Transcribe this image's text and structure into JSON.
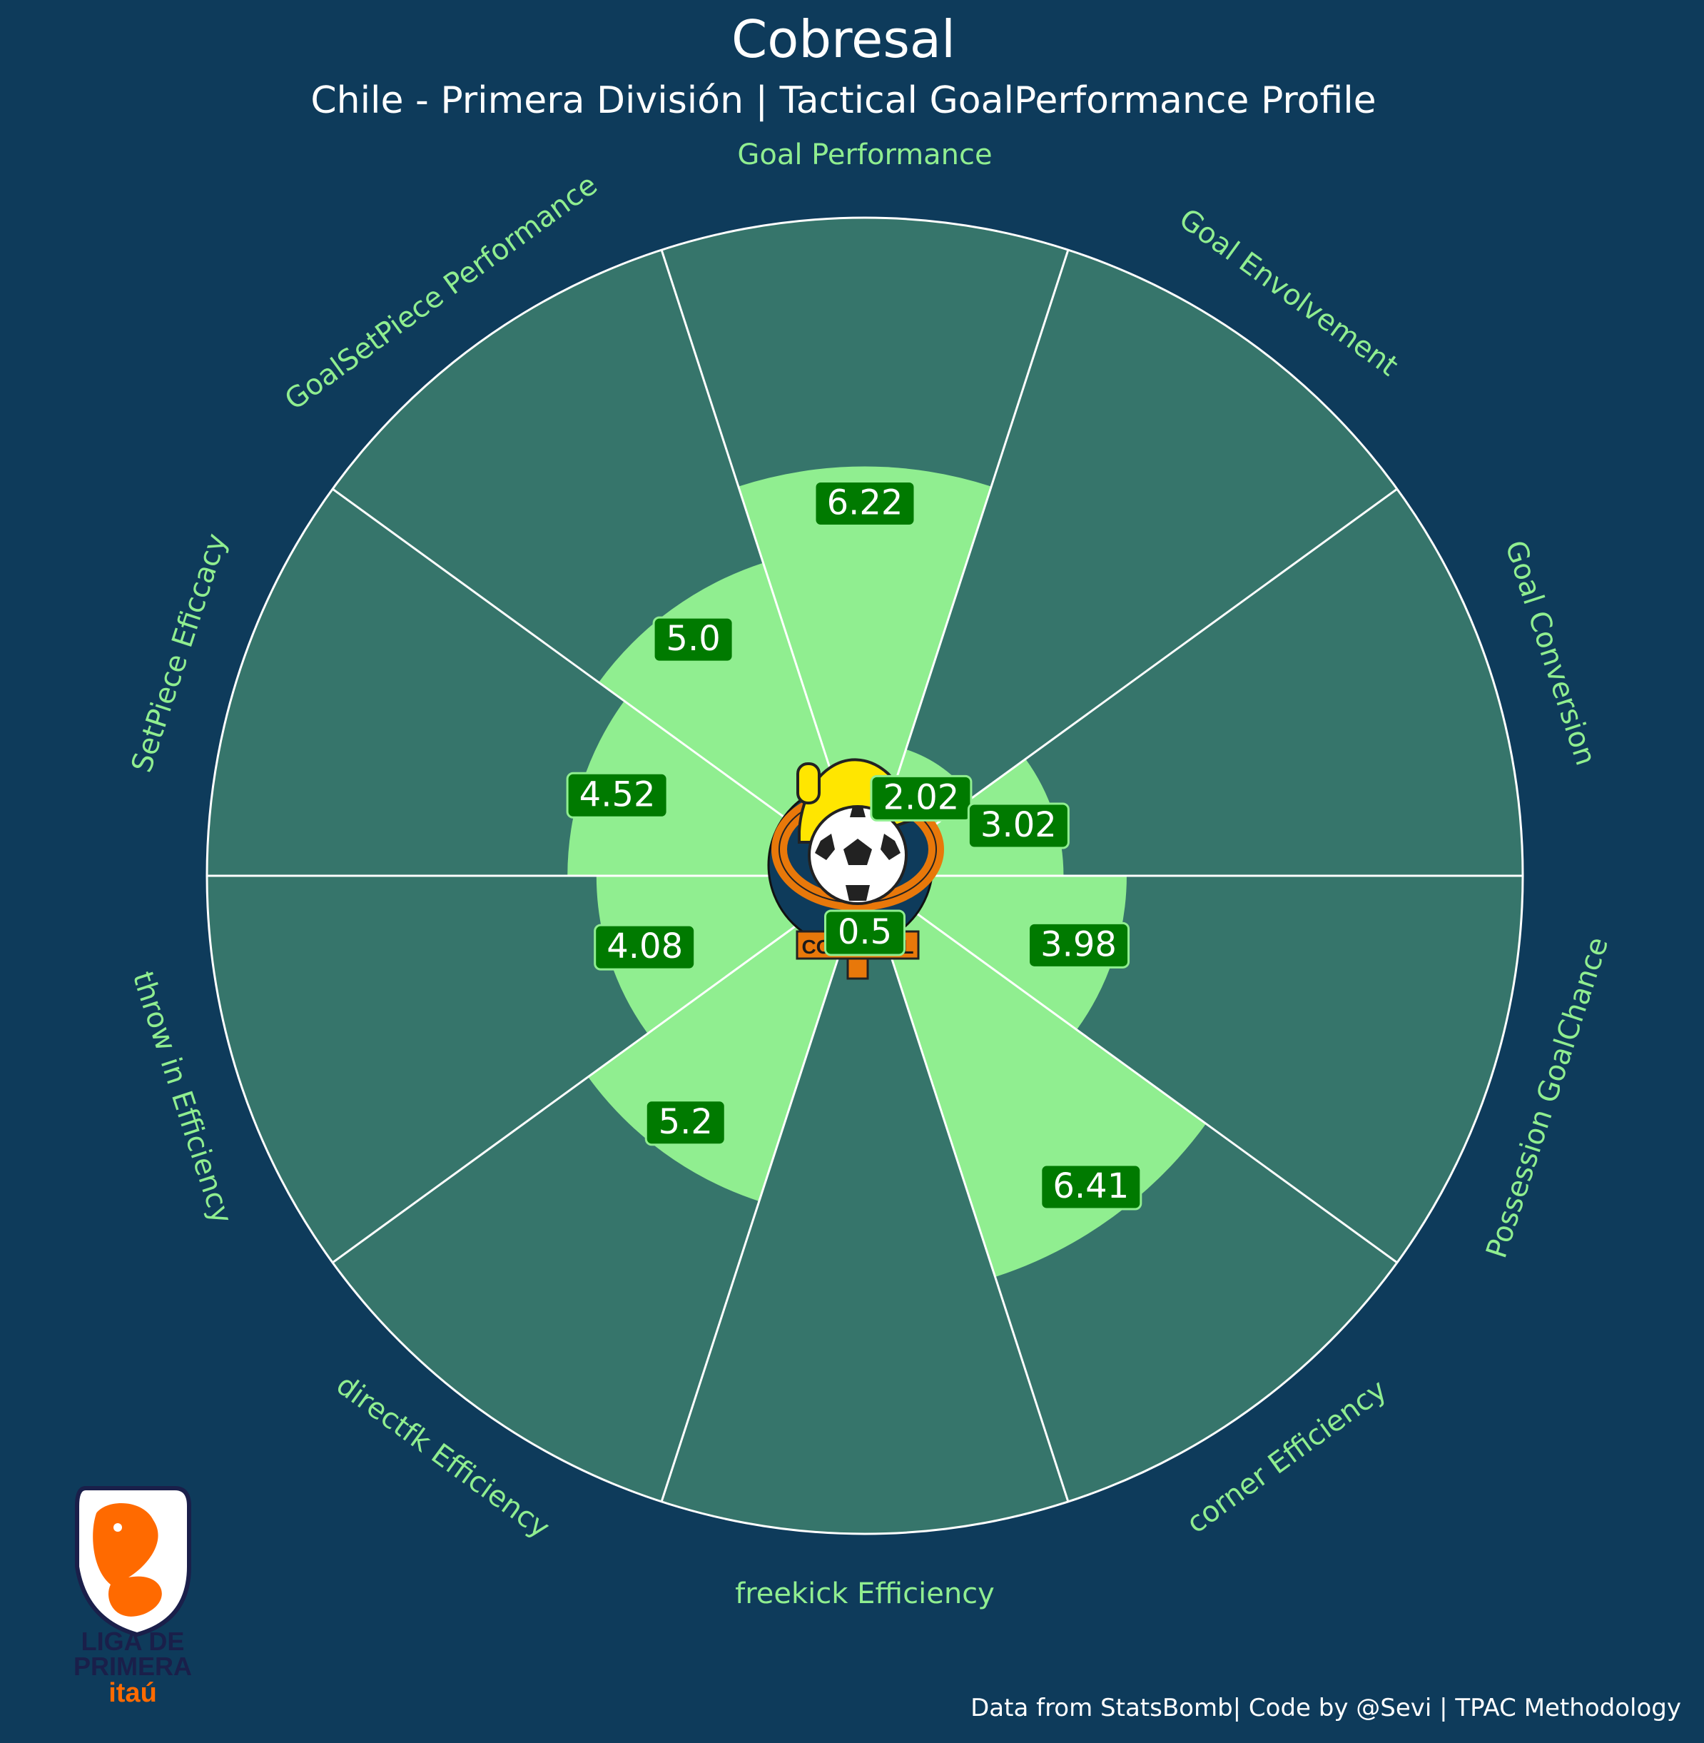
{
  "chart_data": {
    "type": "radial-bar",
    "title": "Cobresal",
    "subtitle": "Chile - Primera División | Tactical GoalPerformance Profile",
    "categories": [
      "Goal Performance",
      "Goal Envolvement",
      "Goal Conversion",
      "Possession GoalChance",
      "corner Efficiency",
      "freekick Efficiency",
      "directfk Efficiency",
      "throw in Efficiency",
      "SetPiece Eficcacy",
      "GoalSetPiece Performance"
    ],
    "values": [
      6.22,
      2.02,
      3.02,
      3.98,
      6.41,
      0.5,
      5.2,
      4.08,
      4.52,
      5.0
    ],
    "value_labels": [
      "6.22",
      "2.02",
      "3.02",
      "3.98",
      "6.41",
      "0.5",
      "5.2",
      "4.08",
      "4.52",
      "5.0"
    ],
    "rlim": [
      0,
      10
    ],
    "grid": false,
    "colors": {
      "background": "#0e3b5b",
      "sector": "#36756b",
      "value_bar": "#90ee90",
      "label_box": "#007a00",
      "label_box_edge": "#90ee90",
      "axis_label": "#90ee90",
      "divider": "#ffffff"
    }
  },
  "footer": {
    "credit": "Data from StatsBomb| Code by @Sevi | TPAC Methodology"
  },
  "logos": {
    "team_badge_text": "COBRESAL",
    "league": {
      "line1": "LIGA DE",
      "line2": "PRIMERA",
      "line3": "itaú",
      "navy": "#1a1f4a",
      "orange": "#ff6a00"
    }
  }
}
